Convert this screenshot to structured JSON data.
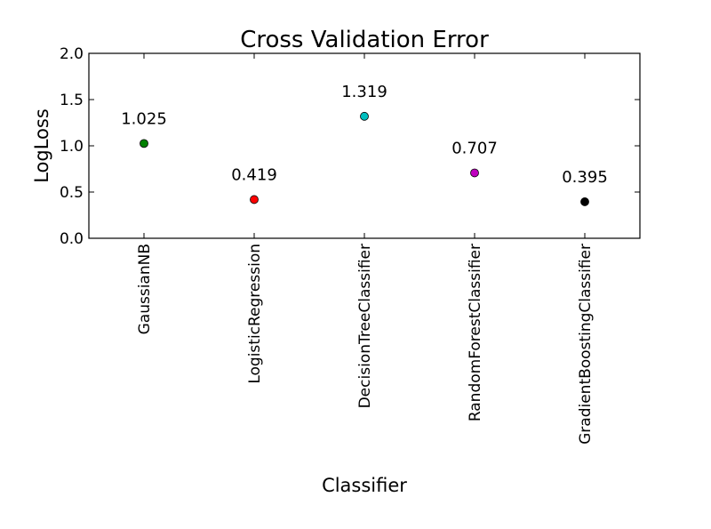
{
  "chart_data": {
    "type": "scatter",
    "title": "Cross Validation Error",
    "xlabel": "Classifier",
    "ylabel": "LogLoss",
    "categories": [
      "GaussianNB",
      "LogisticRegression",
      "DecisionTreeClassifier",
      "RandomForestClassifier",
      "GradientBoostingClassifier"
    ],
    "values": [
      1.025,
      0.419,
      1.319,
      0.707,
      0.395
    ],
    "value_labels": [
      "1.025",
      "0.419",
      "1.319",
      "0.707",
      "0.395"
    ],
    "colors": [
      "#008000",
      "#ff0000",
      "#00bfbf",
      "#bf00bf",
      "#000000"
    ],
    "ylim": [
      0.0,
      2.0
    ],
    "yticks": [
      0.0,
      0.5,
      1.0,
      1.5,
      2.0
    ],
    "ytick_labels": [
      "0.0",
      "0.5",
      "1.0",
      "1.5",
      "2.0"
    ],
    "grid": false,
    "legend": "none"
  }
}
